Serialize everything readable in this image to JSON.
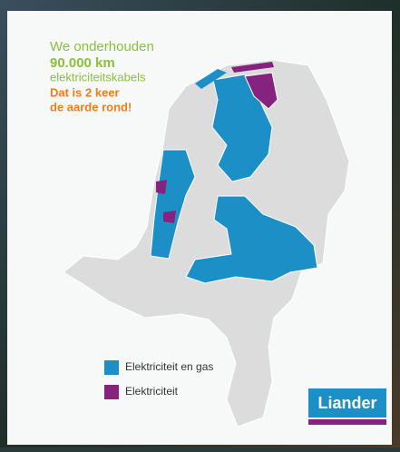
{
  "header": {
    "line1": "We onderhouden",
    "line2": "90.000 km",
    "line3": "elektriciteitskabels",
    "line4": "Dat is 2 keer",
    "line5": "de aarde rond!"
  },
  "legend": [
    {
      "label": "Elektriciteit en gas",
      "color": "#1b8fc6"
    },
    {
      "label": "Elektriciteit",
      "color": "#86237f"
    }
  ],
  "logo": "Liander"
}
